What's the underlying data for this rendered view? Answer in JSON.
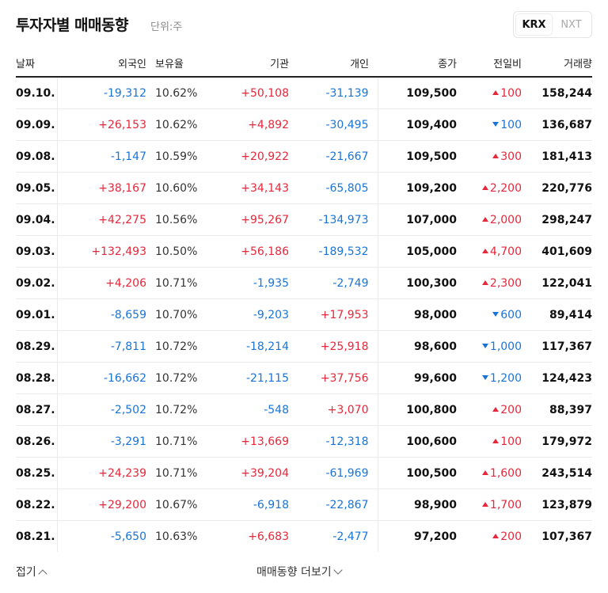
{
  "header": {
    "title": "투자자별 매매동향",
    "unit": "단위:주"
  },
  "tabs": [
    {
      "label": "KRX",
      "active": true
    },
    {
      "label": "NXT",
      "active": false
    }
  ],
  "table": {
    "columns": [
      "날짜",
      "외국인",
      "보유율",
      "기관",
      "개인",
      "종가",
      "전일비",
      "거래량"
    ],
    "rows": [
      {
        "date": "09.10.",
        "foreign": "-19,312",
        "holding": "10.62%",
        "institution": "+50,108",
        "individual": "-31,139",
        "close": "109,500",
        "change_dir": "up",
        "change": "100",
        "volume": "158,244"
      },
      {
        "date": "09.09.",
        "foreign": "+26,153",
        "holding": "10.62%",
        "institution": "+4,892",
        "individual": "-30,495",
        "close": "109,400",
        "change_dir": "down",
        "change": "100",
        "volume": "136,687"
      },
      {
        "date": "09.08.",
        "foreign": "-1,147",
        "holding": "10.59%",
        "institution": "+20,922",
        "individual": "-21,667",
        "close": "109,500",
        "change_dir": "up",
        "change": "300",
        "volume": "181,413"
      },
      {
        "date": "09.05.",
        "foreign": "+38,167",
        "holding": "10.60%",
        "institution": "+34,143",
        "individual": "-65,805",
        "close": "109,200",
        "change_dir": "up",
        "change": "2,200",
        "volume": "220,776"
      },
      {
        "date": "09.04.",
        "foreign": "+42,275",
        "holding": "10.56%",
        "institution": "+95,267",
        "individual": "-134,973",
        "close": "107,000",
        "change_dir": "up",
        "change": "2,000",
        "volume": "298,247"
      },
      {
        "date": "09.03.",
        "foreign": "+132,493",
        "holding": "10.50%",
        "institution": "+56,186",
        "individual": "-189,532",
        "close": "105,000",
        "change_dir": "up",
        "change": "4,700",
        "volume": "401,609"
      },
      {
        "date": "09.02.",
        "foreign": "+4,206",
        "holding": "10.71%",
        "institution": "-1,935",
        "individual": "-2,749",
        "close": "100,300",
        "change_dir": "up",
        "change": "2,300",
        "volume": "122,041"
      },
      {
        "date": "09.01.",
        "foreign": "-8,659",
        "holding": "10.70%",
        "institution": "-9,203",
        "individual": "+17,953",
        "close": "98,000",
        "change_dir": "down",
        "change": "600",
        "volume": "89,414"
      },
      {
        "date": "08.29.",
        "foreign": "-7,811",
        "holding": "10.72%",
        "institution": "-18,214",
        "individual": "+25,918",
        "close": "98,600",
        "change_dir": "down",
        "change": "1,000",
        "volume": "117,367"
      },
      {
        "date": "08.28.",
        "foreign": "-16,662",
        "holding": "10.72%",
        "institution": "-21,115",
        "individual": "+37,756",
        "close": "99,600",
        "change_dir": "down",
        "change": "1,200",
        "volume": "124,423"
      },
      {
        "date": "08.27.",
        "foreign": "-2,502",
        "holding": "10.72%",
        "institution": "-548",
        "individual": "+3,070",
        "close": "100,800",
        "change_dir": "up",
        "change": "200",
        "volume": "88,397"
      },
      {
        "date": "08.26.",
        "foreign": "-3,291",
        "holding": "10.71%",
        "institution": "+13,669",
        "individual": "-12,318",
        "close": "100,600",
        "change_dir": "up",
        "change": "100",
        "volume": "179,972"
      },
      {
        "date": "08.25.",
        "foreign": "+24,239",
        "holding": "10.71%",
        "institution": "+39,204",
        "individual": "-61,969",
        "close": "100,500",
        "change_dir": "up",
        "change": "1,600",
        "volume": "243,514"
      },
      {
        "date": "08.22.",
        "foreign": "+29,200",
        "holding": "10.67%",
        "institution": "-6,918",
        "individual": "-22,867",
        "close": "98,900",
        "change_dir": "up",
        "change": "1,700",
        "volume": "123,879"
      },
      {
        "date": "08.21.",
        "foreign": "-5,650",
        "holding": "10.63%",
        "institution": "+6,683",
        "individual": "-2,477",
        "close": "97,200",
        "change_dir": "up",
        "change": "200",
        "volume": "107,367"
      }
    ]
  },
  "footer": {
    "collapse": "접기",
    "more": "매매동향 더보기"
  }
}
